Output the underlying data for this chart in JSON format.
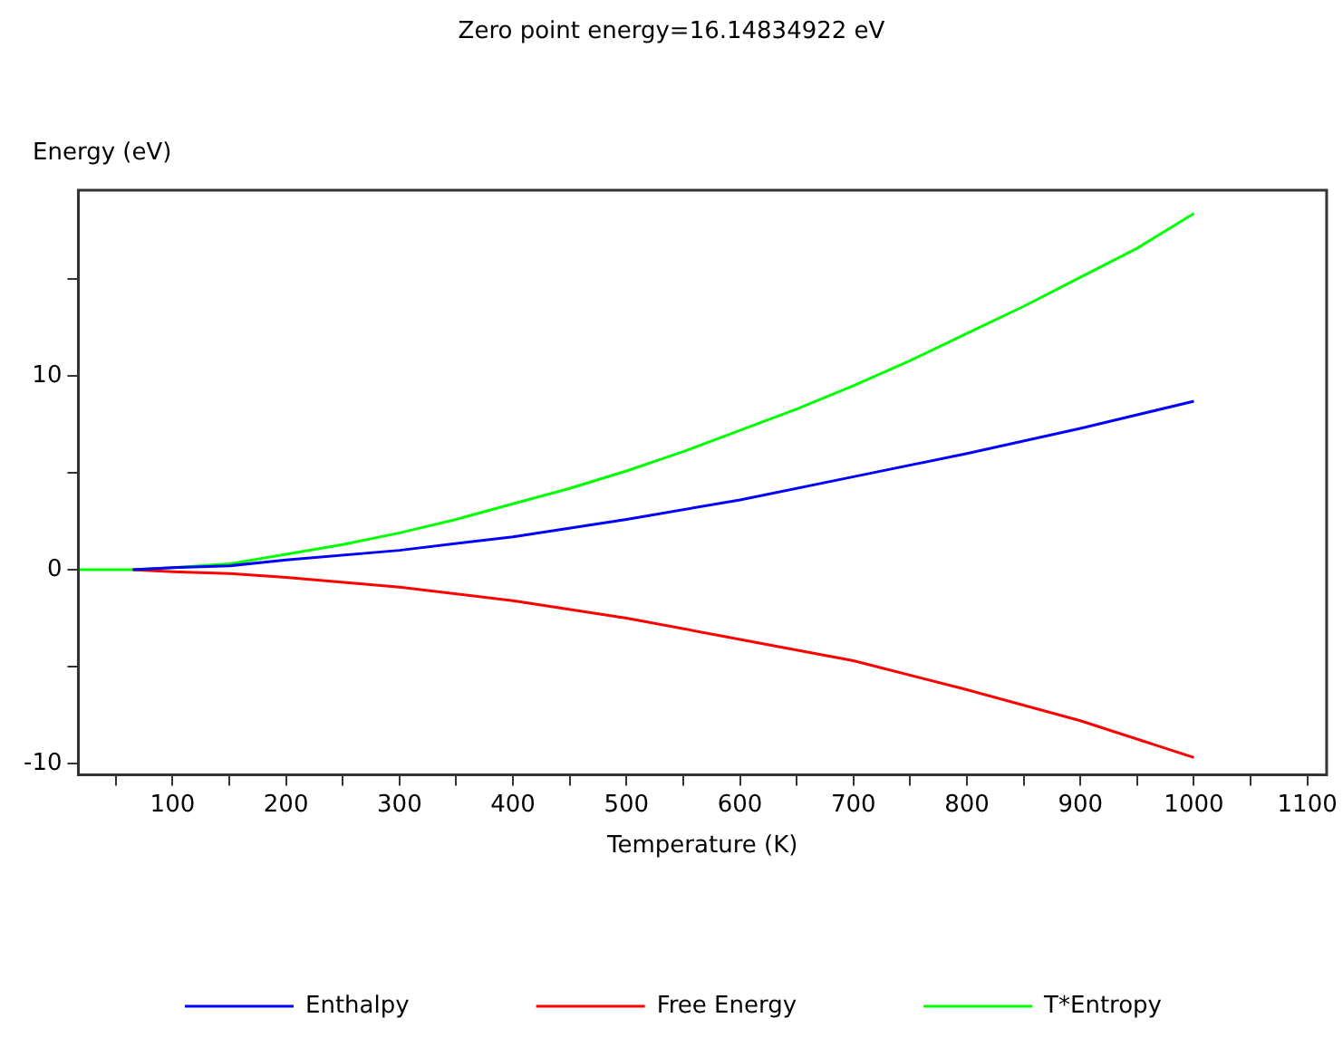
{
  "chart_data": {
    "type": "line",
    "title": "Zero point energy=16.14834922 eV",
    "xlabel": "Temperature (K)",
    "ylabel": "Energy  (eV)",
    "xlim": [
      17,
      1117
    ],
    "xticks": [
      {
        "value": 50,
        "label": null
      },
      100,
      {
        "value": 150,
        "label": null
      },
      200,
      {
        "value": 250,
        "label": null
      },
      300,
      {
        "value": 350,
        "label": null
      },
      400,
      {
        "value": 450,
        "label": null
      },
      500,
      {
        "value": 550,
        "label": null
      },
      600,
      {
        "value": 650,
        "label": null
      },
      700,
      {
        "value": 750,
        "label": null
      },
      800,
      {
        "value": 850,
        "label": null
      },
      900,
      {
        "value": 950,
        "label": null
      },
      1000,
      {
        "value": 1050,
        "label": null
      },
      1100
    ],
    "ylim": [
      -10.6,
      19.6
    ],
    "yticks": [
      -10,
      {
        "value": -5,
        "label": null
      },
      0,
      {
        "value": 5,
        "label": null
      },
      10,
      {
        "value": 15,
        "label": null
      }
    ],
    "grid": false,
    "legend": "bottom",
    "marker": "none",
    "line_style": "solid",
    "series": [
      {
        "name": "Enthalpy",
        "color": "#0000ff",
        "x": [
          65,
          100,
          150,
          200,
          300,
          400,
          500,
          600,
          700,
          800,
          900,
          1000
        ],
        "values": [
          0,
          0.1,
          0.2,
          0.5,
          1.0,
          1.7,
          2.6,
          3.6,
          4.8,
          6.0,
          7.3,
          8.7
        ]
      },
      {
        "name": "Free Energy",
        "color": "#ff0000",
        "x": [
          65,
          100,
          150,
          200,
          300,
          400,
          500,
          600,
          700,
          800,
          900,
          1000
        ],
        "values": [
          0,
          -0.1,
          -0.2,
          -0.4,
          -0.9,
          -1.6,
          -2.5,
          -3.6,
          -4.7,
          -6.2,
          -7.8,
          -9.7
        ]
      },
      {
        "name": "T*Entropy",
        "color": "#00ff00",
        "x": [
          17,
          65,
          100,
          150,
          200,
          250,
          300,
          350,
          400,
          450,
          500,
          550,
          600,
          650,
          700,
          750,
          800,
          850,
          900,
          950,
          1000
        ],
        "values": [
          0,
          0,
          0.1,
          0.3,
          0.8,
          1.3,
          1.9,
          2.6,
          3.4,
          4.2,
          5.1,
          6.1,
          7.2,
          8.3,
          9.5,
          10.8,
          12.2,
          13.6,
          15.1,
          16.6,
          18.4
        ]
      }
    ]
  }
}
